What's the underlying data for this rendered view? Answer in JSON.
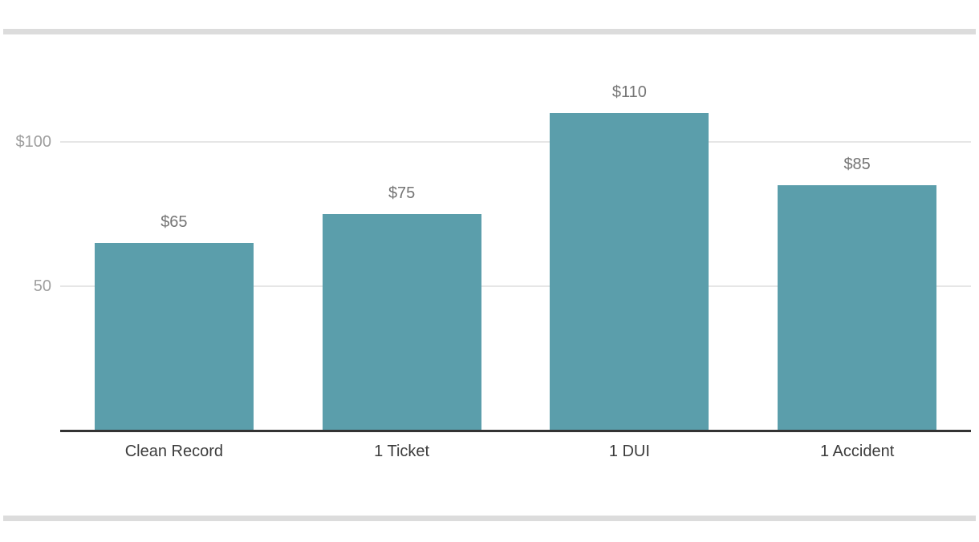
{
  "chart_data": {
    "type": "bar",
    "title": "",
    "categories": [
      "Clean Record",
      "1 Ticket",
      "1 DUI",
      "1 Accident"
    ],
    "values": [
      65,
      75,
      110,
      85
    ],
    "value_labels": [
      "$65",
      "$75",
      "$110",
      "$85"
    ],
    "y_ticks": [
      {
        "value": 50,
        "label": "50"
      },
      {
        "value": 100,
        "label": "$100"
      }
    ],
    "ylim": [
      0,
      132
    ],
    "xlabel": "",
    "ylabel": "",
    "grid": "horizontal-only",
    "legend": "none"
  },
  "colors": {
    "background": "#ffffff",
    "bar": "#5b9eab",
    "gridline": "#e6e6e6",
    "axis_line": "#333333",
    "y_tick_label": "#9e9e9e",
    "value_label": "#757575",
    "category_label": "#3c3c3c",
    "divider": "#dcdcdc"
  }
}
